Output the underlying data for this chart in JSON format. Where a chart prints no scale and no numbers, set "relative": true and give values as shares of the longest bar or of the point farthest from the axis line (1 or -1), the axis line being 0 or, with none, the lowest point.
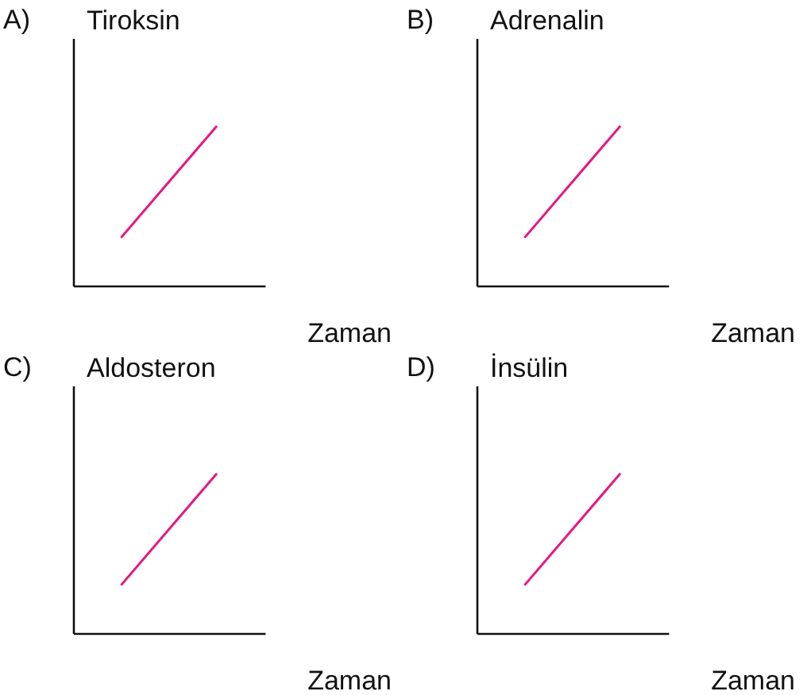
{
  "chart_data": [
    {
      "type": "line",
      "title": "A)",
      "ylabel": "Tiroksin",
      "xlabel": "Zaman",
      "relative": true,
      "categories": [
        null,
        null
      ],
      "series": [
        {
          "color": "#e5177e",
          "values": [
            0.3,
            1
          ]
        }
      ],
      "grid": false
    },
    {
      "type": "line",
      "title": "B)",
      "ylabel": "Adrenalin",
      "xlabel": "Zaman",
      "relative": true,
      "categories": [
        null,
        null
      ],
      "series": [
        {
          "color": "#e5177e",
          "values": [
            0.3,
            1
          ]
        }
      ],
      "grid": false
    },
    {
      "type": "line",
      "title": "C)",
      "ylabel": "Aldosteron",
      "xlabel": "Zaman",
      "relative": true,
      "categories": [
        null,
        null
      ],
      "series": [
        {
          "color": "#e5177e",
          "values": [
            0.3,
            1
          ]
        }
      ],
      "grid": false
    },
    {
      "type": "line",
      "title": "D)",
      "ylabel": "İnsülin",
      "xlabel": "Zaman",
      "relative": true,
      "categories": [
        null,
        null
      ],
      "series": [
        {
          "color": "#e5177e",
          "values": [
            0.3,
            1
          ]
        }
      ],
      "grid": false
    }
  ]
}
